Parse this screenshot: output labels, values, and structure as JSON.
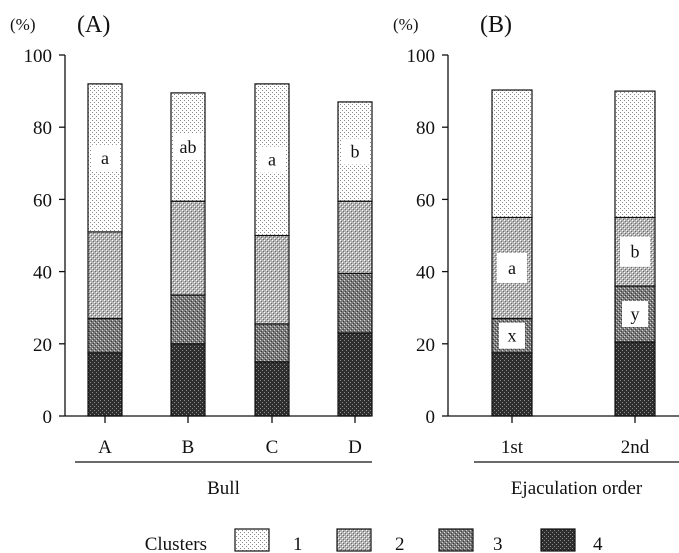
{
  "chart_data": [
    {
      "type": "bar",
      "stacked": true,
      "panel_label": "(A)",
      "y_unit": "(%)",
      "xlabel": "Bull",
      "categories": [
        "A",
        "B",
        "C",
        "D"
      ],
      "ylim": [
        0,
        100
      ],
      "yticks": [
        0,
        20,
        40,
        60,
        80,
        100
      ],
      "series": [
        {
          "name": "4",
          "values": [
            17.5,
            20,
            15,
            23
          ]
        },
        {
          "name": "3",
          "values": [
            9.5,
            13.5,
            10.5,
            16.5
          ]
        },
        {
          "name": "2",
          "values": [
            24,
            26,
            24.5,
            20
          ]
        },
        {
          "name": "1",
          "values": [
            41,
            30,
            42,
            27.5
          ]
        }
      ],
      "annotations": [
        {
          "category": "A",
          "series": "1",
          "text": "a"
        },
        {
          "category": "B",
          "series": "1",
          "text": "ab"
        },
        {
          "category": "C",
          "series": "1",
          "text": "a"
        },
        {
          "category": "D",
          "series": "1",
          "text": "b"
        }
      ]
    },
    {
      "type": "bar",
      "stacked": true,
      "panel_label": "(B)",
      "y_unit": "(%)",
      "xlabel": "Ejaculation order",
      "categories": [
        "1st",
        "2nd"
      ],
      "ylim": [
        0,
        100
      ],
      "yticks": [
        0,
        20,
        40,
        60,
        80,
        100
      ],
      "series": [
        {
          "name": "4",
          "values": [
            17.5,
            20.5
          ]
        },
        {
          "name": "3",
          "values": [
            9.5,
            15.5
          ]
        },
        {
          "name": "2",
          "values": [
            28,
            19
          ]
        },
        {
          "name": "1",
          "values": [
            35.3,
            35
          ]
        }
      ],
      "annotations": [
        {
          "category": "1st",
          "series": "2",
          "text": "a"
        },
        {
          "category": "2nd",
          "series": "2",
          "text": "b"
        },
        {
          "category": "1st",
          "series": "3",
          "text": "x"
        },
        {
          "category": "2nd",
          "series": "3",
          "text": "y"
        }
      ]
    }
  ],
  "legend": {
    "title": "Clusters",
    "items": [
      "1",
      "2",
      "3",
      "4"
    ]
  }
}
